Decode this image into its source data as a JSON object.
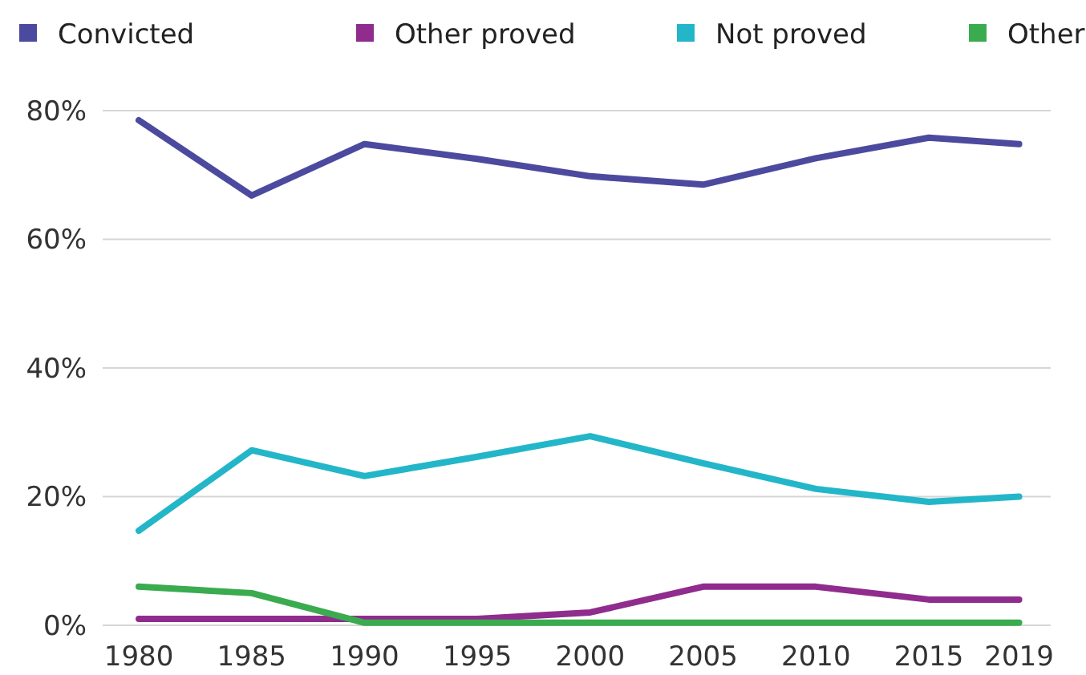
{
  "chart_data": {
    "type": "line",
    "x": [
      1980,
      1985,
      1990,
      1995,
      2000,
      2005,
      2010,
      2015,
      2019
    ],
    "series": [
      {
        "name": "Convicted",
        "color": "#4c4a9e",
        "values": [
          78.5,
          66.8,
          74.8,
          72.5,
          69.8,
          68.5,
          72.6,
          75.8,
          74.8
        ]
      },
      {
        "name": "Other proved",
        "color": "#902c8e",
        "values": [
          1,
          1,
          1,
          1,
          2,
          6,
          6,
          4,
          4
        ]
      },
      {
        "name": "Not proved",
        "color": "#23b6c9",
        "values": [
          14.7,
          27.2,
          23.2,
          26.2,
          29.4,
          25.2,
          21.2,
          19.2,
          20
        ]
      },
      {
        "name": "Other",
        "color": "#3aab4f",
        "values": [
          6,
          5,
          0.4,
          0.4,
          0.4,
          0.4,
          0.4,
          0.4,
          0.4
        ]
      }
    ],
    "xlim": [
      1978.4,
      2020.4
    ],
    "xticks": [
      1980,
      1985,
      1990,
      1995,
      2000,
      2005,
      2010,
      2015,
      2019
    ],
    "ylim": [
      0,
      80
    ],
    "yticks": [
      {
        "value": 0,
        "label": "0%"
      },
      {
        "value": 20,
        "label": "20%"
      },
      {
        "value": 40,
        "label": "40%"
      },
      {
        "value": 60,
        "label": "60%"
      },
      {
        "value": 80,
        "label": "80%"
      }
    ],
    "grid": "y",
    "legend": "top",
    "marker": "none",
    "line_style": "solid"
  }
}
